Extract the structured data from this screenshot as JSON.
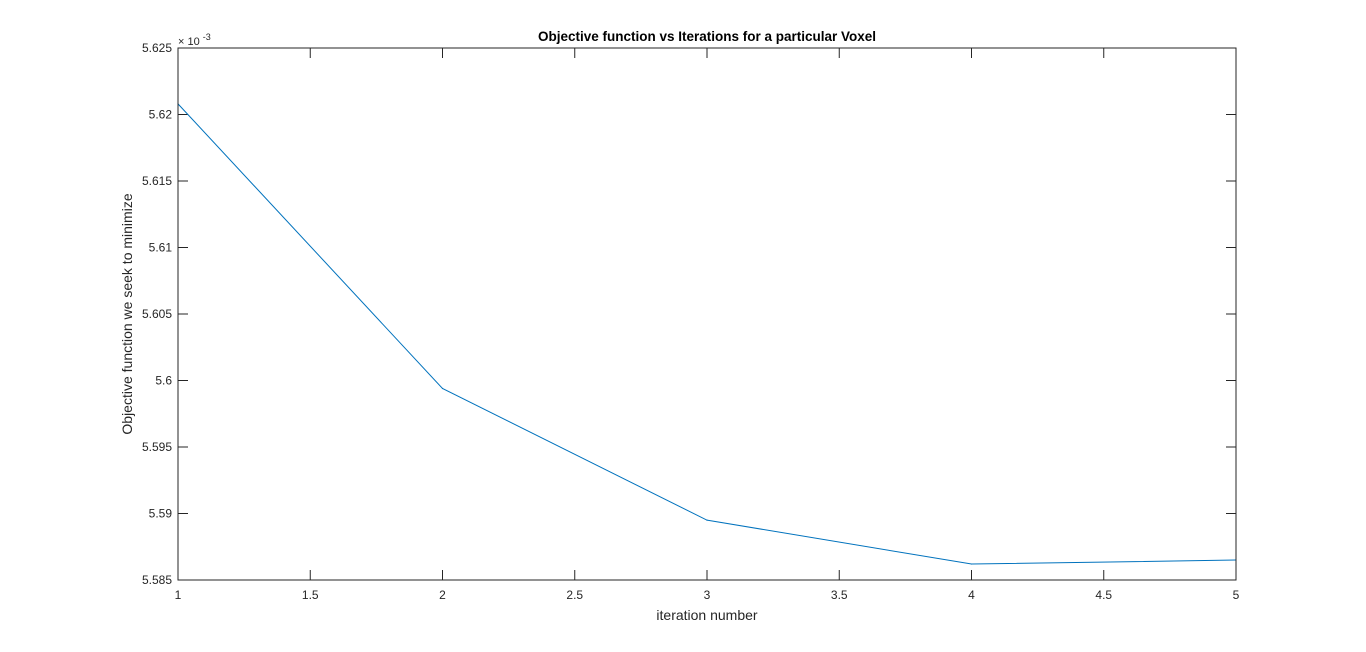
{
  "chart_data": {
    "type": "line",
    "title": "Objective function vs Iterations for a particular Voxel",
    "xlabel": "iteration number",
    "ylabel": "Objective function we seek to minimize",
    "exponent_base": "× 10",
    "exponent_power": "-3",
    "xlim": [
      1,
      5
    ],
    "ylim": [
      5.585,
      5.625
    ],
    "x_ticks": [
      1,
      1.5,
      2,
      2.5,
      3,
      3.5,
      4,
      4.5,
      5
    ],
    "x_tick_labels": [
      "1",
      "1.5",
      "2",
      "2.5",
      "3",
      "3.5",
      "4",
      "4.5",
      "5"
    ],
    "y_ticks": [
      5.585,
      5.59,
      5.595,
      5.6,
      5.605,
      5.61,
      5.615,
      5.62,
      5.625
    ],
    "y_tick_labels": [
      "5.585",
      "5.59",
      "5.595",
      "5.6",
      "5.605",
      "5.61",
      "5.615",
      "5.62",
      "5.625"
    ],
    "grid": false,
    "box": true,
    "series": [
      {
        "x": [
          1,
          2,
          3,
          4,
          5
        ],
        "values": [
          5.6208,
          5.5994,
          5.5895,
          5.5862,
          5.5865
        ],
        "color": "#0072BD"
      }
    ]
  }
}
